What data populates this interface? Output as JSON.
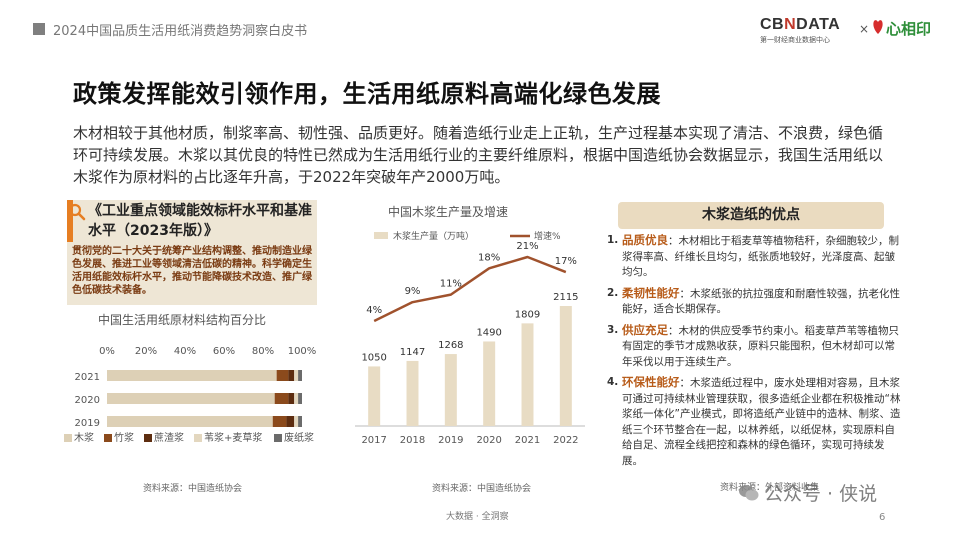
{
  "header": {
    "title": "2024中国品质生活用纸消费趋势洞察白皮书"
  },
  "logos": {
    "cbn_text_a": "CB",
    "cbn_text_x": "N",
    "cbn_text_b": "DATA",
    "cbn_sub": "第一财经商业数据中心",
    "times": "×",
    "brand_text": "心相印"
  },
  "main_title": "政策发挥能效引领作用，生活用纸原料高端化绿色发展",
  "intro_paragraph": "木材相较于其他材质，制浆率高、韧性强、品质更好。随着造纸行业走上正轨，生产过程基本实现了清洁、不浪费，绿色循环可持续发展。木浆以其优良的特性已然成为生活用纸行业的主要纤维原料，根据中国造纸协会数据显示，我国生活用纸以木浆作为原材料的占比逐年升高，于2022年突破年产2000万吨。",
  "policy": {
    "title": "《工业重点领域能效标杆水平和基准水平（2023年版）》",
    "body": "贯彻党的二十大关于统筹产业结构调整、推动制造业绿色发展、推进工业等领域清洁低碳的精神。科学确定生活用纸能效标杆水平，推动节能降碳技术改造、推广绿色低碳技术装备。"
  },
  "chart_data": [
    {
      "type": "bar",
      "orientation": "horizontal",
      "stacked": true,
      "title": "中国生活用纸原材料结构百分比",
      "categories": [
        "2021",
        "2020",
        "2019"
      ],
      "x_ticks": [
        "0%",
        "20%",
        "40%",
        "60%",
        "80%",
        "100%"
      ],
      "xlim": [
        0,
        100
      ],
      "series": [
        {
          "name": "木浆",
          "values": [
            87,
            86,
            85
          ],
          "color": "#ddd0b6"
        },
        {
          "name": "竹浆",
          "values": [
            6,
            7,
            7
          ],
          "color": "#8b4a1c"
        },
        {
          "name": "蔗渣浆",
          "values": [
            3,
            3,
            4
          ],
          "color": "#5d2d10"
        },
        {
          "name": "苇浆+麦草浆",
          "values": [
            2,
            2,
            2
          ],
          "color": "#e3d7bf"
        },
        {
          "name": "废纸浆",
          "values": [
            2,
            2,
            2
          ],
          "color": "#6b6b6b"
        }
      ],
      "legend": "bottom",
      "source": "资料来源：中国造纸协会"
    },
    {
      "type": "bar+line",
      "title": "中国木浆生产量及增速",
      "categories": [
        "2017",
        "2018",
        "2019",
        "2020",
        "2021",
        "2022"
      ],
      "bar_series": {
        "name": "木浆生产量（万吨）",
        "values": [
          1050,
          1147,
          1268,
          1490,
          1809,
          2115
        ],
        "labels": [
          "1050",
          "1147",
          "1268",
          "1490",
          "1809",
          "2115"
        ],
        "color": "#e8dcc4"
      },
      "line_series": {
        "name": "增速%",
        "values": [
          4,
          9,
          11,
          18,
          21,
          17
        ],
        "labels": [
          "4%",
          "9%",
          "11%",
          "18%",
          "21%",
          "17%"
        ],
        "color": "#a0522d"
      },
      "legend": "top",
      "source": "资料来源：中国造纸协会"
    }
  ],
  "advantages": {
    "title": "木浆造纸的优点",
    "items": [
      {
        "num": "1.",
        "title": "品质优良",
        "text": "：木材相比于稻麦草等植物秸秆，杂细胞较少，制浆得率高、纤维长且均匀，纸张质地较好，光泽度高、起皱均匀。"
      },
      {
        "num": "2.",
        "title": "柔韧性能好",
        "text": "：木浆纸张的抗拉强度和耐磨性较强，抗老化性能好，适合长期保存。"
      },
      {
        "num": "3.",
        "title": "供应充足",
        "text": "：木材的供应受季节约束小。稻麦草芦苇等植物只有固定的季节才成熟收获，原料只能囤积，但木材却可以常年采伐以用于连续生产。"
      },
      {
        "num": "4.",
        "title": "环保性能好",
        "text": "：木浆造纸过程中，废水处理相对容易，且木浆可通过可持续林业管理获取，很多造纸企业都在积极推动“林浆纸一体化”产业模式，即将造纸产业链中的造林、制浆、造纸三个环节整合在一起，以林养纸，以纸促林，实现原料自给自足、流程全线把控和森林的绿色循环，实现可持续发展。"
      }
    ],
    "source": "资料来源：外部资料收集"
  },
  "footer": {
    "text": "大数据 · 全洞察",
    "page": "6"
  },
  "watermark": {
    "text": "公众号 · 侠说"
  }
}
